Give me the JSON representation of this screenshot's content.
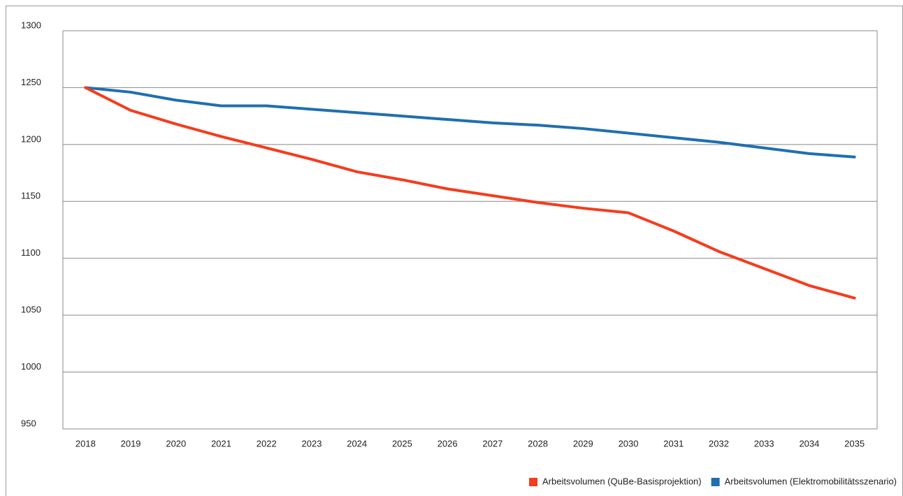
{
  "chart_data": {
    "type": "line",
    "categories": [
      "2018",
      "2019",
      "2020",
      "2021",
      "2022",
      "2023",
      "2024",
      "2025",
      "2026",
      "2027",
      "2028",
      "2029",
      "2030",
      "2031",
      "2032",
      "2033",
      "2034",
      "2035"
    ],
    "series": [
      {
        "name": "Arbeitsvolumen (QuBe-Basisprojektion)",
        "color": "#f53c1e",
        "values": [
          1250,
          1230,
          1218,
          1207,
          1197,
          1187,
          1176,
          1169,
          1161,
          1155,
          1149,
          1144,
          1140,
          1124,
          1106,
          1091,
          1076,
          1065
        ]
      },
      {
        "name": "Arbeitsvolumen (Elektromobilitätsszenario)",
        "color": "#1f6fb0",
        "values": [
          1250,
          1246,
          1239,
          1234,
          1234,
          1231,
          1228,
          1225,
          1222,
          1219,
          1217,
          1214,
          1210,
          1206,
          1202,
          1197,
          1192,
          1189
        ]
      }
    ],
    "ylim": [
      950,
      1300
    ],
    "yticks": [
      950,
      1000,
      1050,
      1100,
      1150,
      1200,
      1250,
      1300
    ],
    "grid": true
  }
}
